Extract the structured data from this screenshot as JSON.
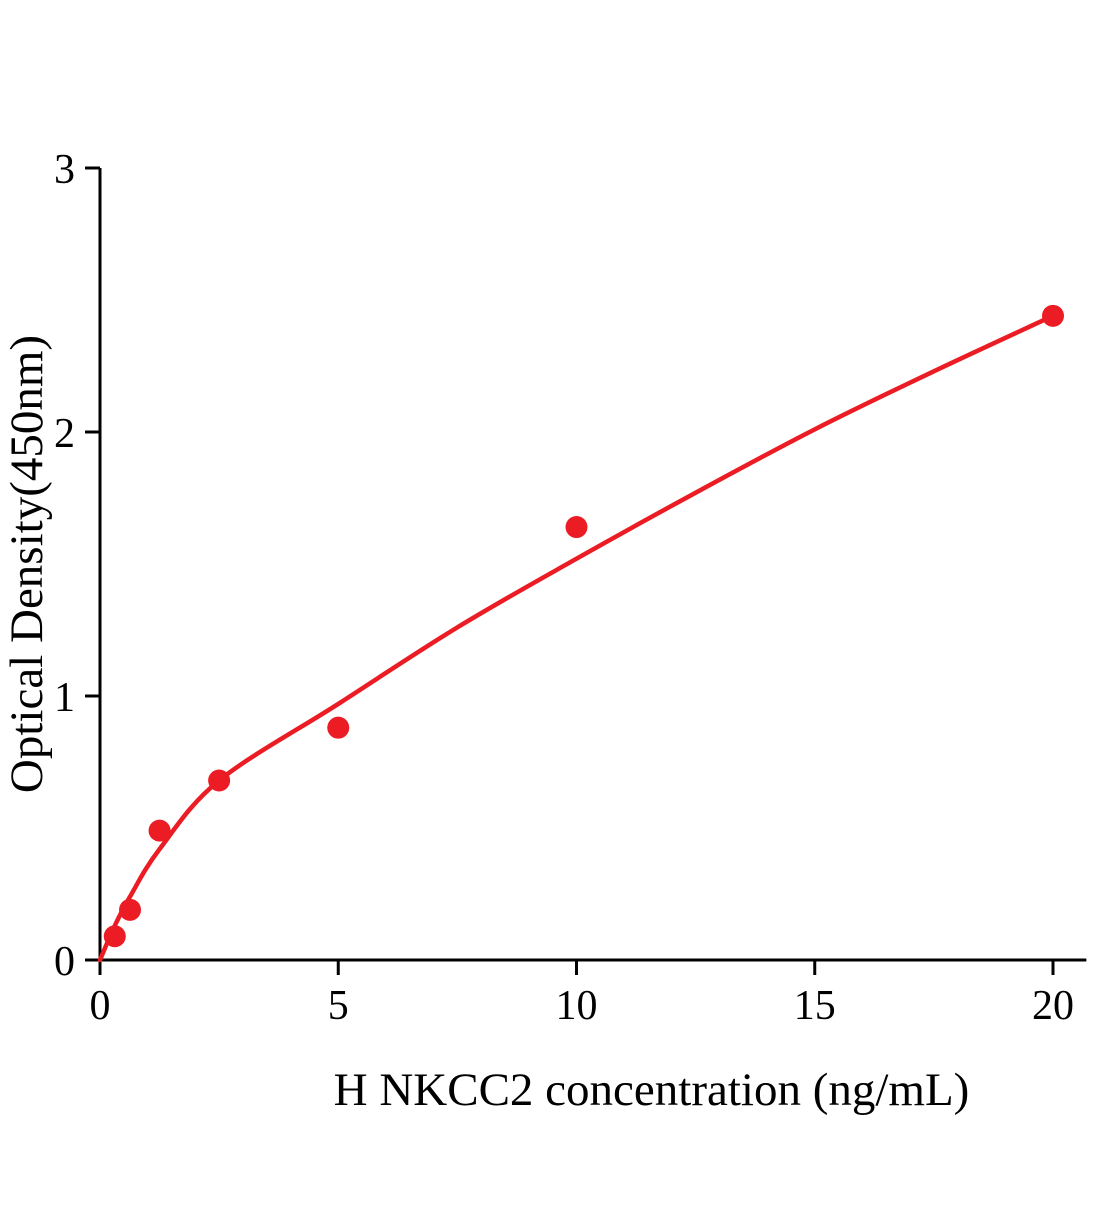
{
  "chart_data": {
    "type": "scatter",
    "title": "",
    "xlabel": "H NKCC2 concentration (ng/mL)",
    "ylabel": "Optical Density(450nm)",
    "xlim": [
      0,
      20.7
    ],
    "ylim": [
      0,
      3
    ],
    "x_ticks": [
      0,
      5,
      10,
      15,
      20
    ],
    "y_ticks": [
      0,
      1,
      2,
      3
    ],
    "grid": false,
    "legend": "none",
    "points": {
      "x": [
        0.31,
        0.63,
        1.25,
        2.5,
        5,
        10,
        20
      ],
      "y": [
        0.09,
        0.19,
        0.49,
        0.68,
        0.88,
        1.64,
        2.44
      ]
    },
    "fit_curve": {
      "x": [
        0,
        0.31,
        0.63,
        1.25,
        2.5,
        5,
        7.5,
        10,
        12.5,
        15,
        17.5,
        20
      ],
      "y": [
        0.0,
        0.13,
        0.24,
        0.42,
        0.68,
        0.97,
        1.26,
        1.52,
        1.77,
        2.01,
        2.23,
        2.44
      ]
    },
    "colors": {
      "points": "#ec1c24",
      "curve": "#ec1c24",
      "axis": "#000000",
      "background": "#ffffff"
    }
  }
}
